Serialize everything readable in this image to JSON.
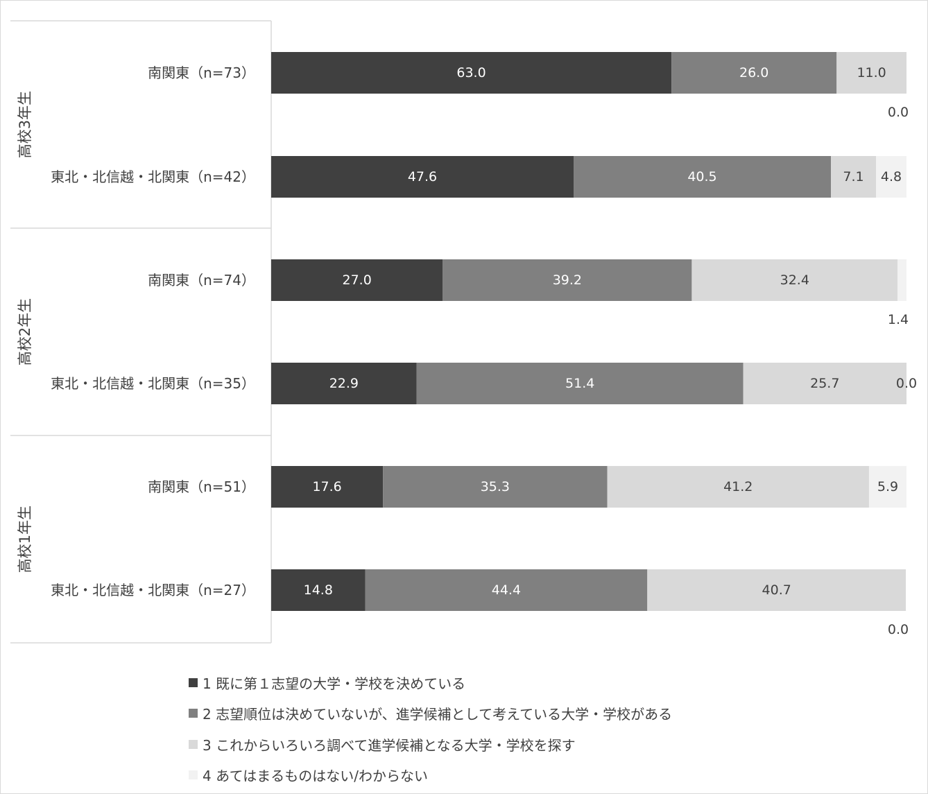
{
  "chart_data": {
    "type": "bar",
    "orientation": "horizontal",
    "stacked": true,
    "grid": false,
    "legend_position": "bottom",
    "xlim": [
      0,
      100
    ],
    "groups": [
      {
        "label": "高校3年生",
        "categories": [
          "南関東（n=73）",
          "東北・北信越・北関東（n=42）"
        ]
      },
      {
        "label": "高校2年生",
        "categories": [
          "南関東（n=74）",
          "東北・北信越・北関東（n=35）"
        ]
      },
      {
        "label": "高校1年生",
        "categories": [
          "南関東（n=51）",
          "東北・北信越・北関東（n=27）"
        ]
      }
    ],
    "series": [
      {
        "name": "1 既に第１志望の大学・学校を決めている",
        "color": "#404040",
        "label_color": "#ffffff",
        "values": [
          63.0,
          47.6,
          27.0,
          22.9,
          17.6,
          14.8
        ]
      },
      {
        "name": "2 志望順位は決めていないが、進学候補として考えている大学・学校がある",
        "color": "#808080",
        "label_color": "#ffffff",
        "values": [
          26.0,
          40.5,
          39.2,
          51.4,
          35.3,
          44.4
        ]
      },
      {
        "name": "3 これからいろいろ調べて進学候補となる大学・学校を探す",
        "color": "#d9d9d9",
        "label_color": "#404040",
        "values": [
          11.0,
          7.1,
          32.4,
          25.7,
          41.2,
          40.7
        ]
      },
      {
        "name": "4 あてはまるものはない/わからない",
        "color": "#f2f2f2",
        "label_color": "#404040",
        "values": [
          0.0,
          4.8,
          1.4,
          0.0,
          5.9,
          0.0
        ]
      }
    ],
    "data_labels": [
      [
        "63.0",
        "26.0",
        "11.0",
        "0.0"
      ],
      [
        "47.6",
        "40.5",
        "7.1",
        "4.8"
      ],
      [
        "27.0",
        "39.2",
        "32.4",
        "1.4"
      ],
      [
        "22.9",
        "51.4",
        "25.7",
        "0.0"
      ],
      [
        "17.6",
        "35.3",
        "41.2",
        "5.9"
      ],
      [
        "14.8",
        "44.4",
        "40.7",
        "0.0"
      ]
    ]
  }
}
